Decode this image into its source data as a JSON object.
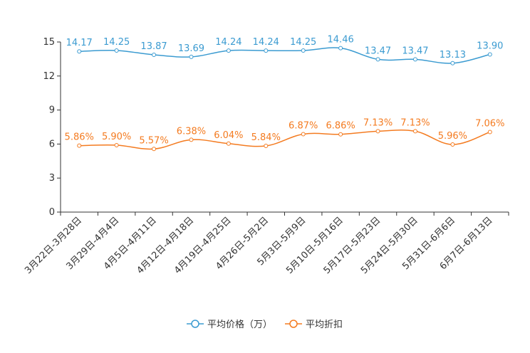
{
  "chart_data": {
    "type": "line",
    "categories": [
      "3月22日-3月28日",
      "3月29日-4月4日",
      "4月5日-4月11日",
      "4月12日-4月18日",
      "4月19日-4月25日",
      "4月26日-5月2日",
      "5月3日-5月9日",
      "5月10日-5月16日",
      "5月17日-5月23日",
      "5月24日-5月30日",
      "5月31日-6月6日",
      "6月7日-6月13日"
    ],
    "y_ticks": [
      "0",
      "3",
      "6",
      "9",
      "12",
      "15"
    ],
    "ylim": [
      0,
      15
    ],
    "series": [
      {
        "name": "平均价格（万）",
        "color": "#3b9bd1",
        "values": [
          14.17,
          14.25,
          13.87,
          13.69,
          14.24,
          14.24,
          14.25,
          14.46,
          13.47,
          13.47,
          13.13,
          13.9
        ],
        "labels": [
          "14.17",
          "14.25",
          "13.87",
          "13.69",
          "14.24",
          "14.24",
          "14.25",
          "14.46",
          "13.47",
          "13.47",
          "13.13",
          "13.90"
        ]
      },
      {
        "name": "平均折扣",
        "color": "#f47b20",
        "values": [
          5.86,
          5.9,
          5.57,
          6.38,
          6.04,
          5.84,
          6.87,
          6.86,
          7.13,
          7.13,
          5.96,
          7.06
        ],
        "labels": [
          "5.86%",
          "5.90%",
          "5.57%",
          "6.38%",
          "6.04%",
          "5.84%",
          "6.87%",
          "6.86%",
          "7.13%",
          "7.13%",
          "5.96%",
          "7.06%"
        ]
      }
    ],
    "legend_position": "bottom-center"
  }
}
